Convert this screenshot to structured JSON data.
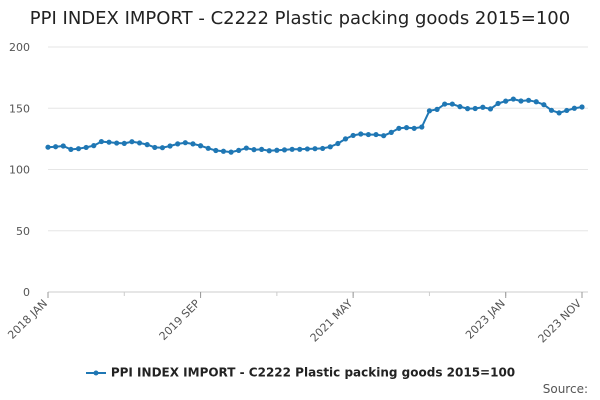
{
  "title": "PPI INDEX IMPORT - C2222 Plastic packing goods 2015=100",
  "source_label": "Source:",
  "colors": {
    "series": "#1f77b4",
    "grid": "#e6e6e6",
    "axis": "#cccccc"
  },
  "chart_data": {
    "type": "line",
    "title": "PPI INDEX IMPORT - C2222 Plastic packing goods 2015=100",
    "xlabel": "",
    "ylabel": "",
    "ylim": [
      0,
      200
    ],
    "yticks": [
      0,
      50,
      100,
      150,
      200
    ],
    "grid": true,
    "legend": "bottom",
    "x_tick_labels": [
      {
        "index": 0,
        "label": "2018 JAN"
      },
      {
        "index": 20,
        "label": "2019 SEP"
      },
      {
        "index": 40,
        "label": "2021 MAY"
      },
      {
        "index": 60,
        "label": "2023 JAN"
      },
      {
        "index": 70,
        "label": "2023 NOV"
      }
    ],
    "x": [
      "2018 JAN",
      "2018 FEB",
      "2018 MAR",
      "2018 APR",
      "2018 MAY",
      "2018 JUN",
      "2018 JUL",
      "2018 AUG",
      "2018 SEP",
      "2018 OCT",
      "2018 NOV",
      "2018 DEC",
      "2019 JAN",
      "2019 FEB",
      "2019 MAR",
      "2019 APR",
      "2019 MAY",
      "2019 JUN",
      "2019 JUL",
      "2019 AUG",
      "2019 SEP",
      "2019 OCT",
      "2019 NOV",
      "2019 DEC",
      "2020 JAN",
      "2020 FEB",
      "2020 MAR",
      "2020 APR",
      "2020 MAY",
      "2020 JUN",
      "2020 JUL",
      "2020 AUG",
      "2020 SEP",
      "2020 OCT",
      "2020 NOV",
      "2020 DEC",
      "2021 JAN",
      "2021 FEB",
      "2021 MAR",
      "2021 APR",
      "2021 MAY",
      "2021 JUN",
      "2021 JUL",
      "2021 AUG",
      "2021 SEP",
      "2021 OCT",
      "2021 NOV",
      "2021 DEC",
      "2022 JAN",
      "2022 FEB",
      "2022 MAR",
      "2022 APR",
      "2022 MAY",
      "2022 JUN",
      "2022 JUL",
      "2022 AUG",
      "2022 SEP",
      "2022 OCT",
      "2022 NOV",
      "2022 DEC",
      "2023 JAN",
      "2023 FEB",
      "2023 MAR",
      "2023 APR",
      "2023 MAY",
      "2023 JUN",
      "2023 JUL",
      "2023 AUG",
      "2023 SEP",
      "2023 OCT",
      "2023 NOV"
    ],
    "series": [
      {
        "name": "PPI INDEX IMPORT - C2222 Plastic packing goods 2015=100",
        "values": [
          118.2,
          118.6,
          119.2,
          116.4,
          117.0,
          118.0,
          119.5,
          122.8,
          122.3,
          121.6,
          121.3,
          122.7,
          121.7,
          120.3,
          118.0,
          117.8,
          119.2,
          120.9,
          121.9,
          120.9,
          119.4,
          117.3,
          115.5,
          114.9,
          114.2,
          115.6,
          117.5,
          116.2,
          116.4,
          115.3,
          115.7,
          116.0,
          116.5,
          116.5,
          116.8,
          117.0,
          117.2,
          118.5,
          121.2,
          125.0,
          127.8,
          129.0,
          128.5,
          128.5,
          127.6,
          130.3,
          133.6,
          134.2,
          133.6,
          134.7,
          147.9,
          149.1,
          153.4,
          153.4,
          151.3,
          149.7,
          149.8,
          150.8,
          149.5,
          153.9,
          155.8,
          157.5,
          155.9,
          156.5,
          155.3,
          152.9,
          148.3,
          146.2,
          148.2,
          150.0,
          151.0
        ]
      }
    ]
  }
}
